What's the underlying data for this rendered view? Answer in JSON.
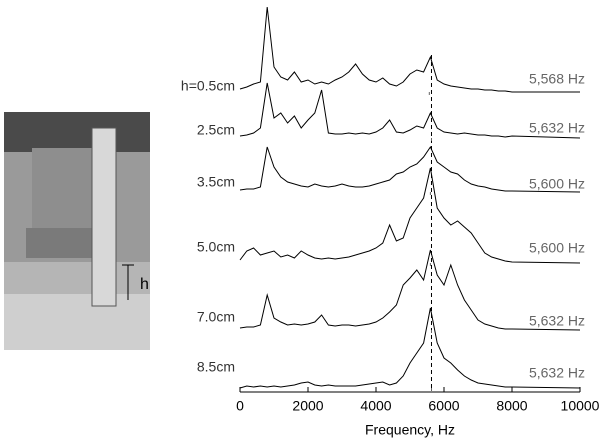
{
  "photo": {
    "label": "h"
  },
  "chart_data": {
    "type": "line",
    "xlabel": "Frequency, Hz",
    "xlim": [
      0,
      10000
    ],
    "xticks": [
      0,
      2000,
      4000,
      6000,
      8000,
      10000
    ],
    "reference_line": 5632,
    "x": [
      0,
      200,
      400,
      600,
      800,
      1000,
      1200,
      1400,
      1600,
      1800,
      2000,
      2200,
      2400,
      2600,
      2800,
      3000,
      3200,
      3400,
      3600,
      3800,
      4000,
      4200,
      4400,
      4600,
      4800,
      5000,
      5200,
      5400,
      5600,
      5800,
      6000,
      6200,
      6400,
      6600,
      6800,
      7000,
      7200,
      7400,
      7600,
      7800,
      8000,
      10000
    ],
    "series": [
      {
        "name": "h=0.5cm",
        "color": "#000000",
        "peak": {
          "value": 5568,
          "label": "5,568 Hz"
        },
        "values": [
          3,
          5,
          8,
          10,
          85,
          25,
          15,
          12,
          20,
          10,
          12,
          8,
          10,
          8,
          12,
          15,
          20,
          28,
          18,
          12,
          10,
          14,
          8,
          6,
          10,
          18,
          22,
          20,
          35,
          12,
          8,
          6,
          5,
          4,
          3,
          3,
          2,
          2,
          1,
          1,
          0,
          0
        ]
      },
      {
        "name": "2.5cm",
        "color": "#000000",
        "peak": {
          "value": 5632,
          "label": "5,632 Hz"
        },
        "values": [
          2,
          3,
          5,
          10,
          55,
          20,
          25,
          15,
          22,
          10,
          18,
          25,
          48,
          5,
          4,
          4,
          5,
          4,
          5,
          4,
          6,
          10,
          18,
          6,
          5,
          8,
          12,
          10,
          25,
          10,
          6,
          5,
          4,
          5,
          4,
          3,
          3,
          2,
          2,
          1,
          2,
          0
        ]
      },
      {
        "name": "3.5cm",
        "color": "#000000",
        "peak": {
          "value": 5600,
          "label": "5,600 Hz"
        },
        "values": [
          2,
          3,
          3,
          5,
          45,
          25,
          15,
          10,
          8,
          6,
          5,
          8,
          6,
          5,
          6,
          8,
          6,
          5,
          5,
          6,
          8,
          10,
          12,
          18,
          20,
          25,
          28,
          35,
          45,
          30,
          25,
          20,
          18,
          12,
          8,
          6,
          5,
          3,
          2,
          1,
          1,
          0
        ]
      },
      {
        "name": "5.0cm",
        "color": "#000000",
        "peak": {
          "value": 5600,
          "label": "5,600 Hz"
        },
        "values": [
          3,
          12,
          15,
          8,
          10,
          12,
          6,
          8,
          5,
          12,
          8,
          5,
          4,
          5,
          4,
          5,
          6,
          8,
          10,
          12,
          15,
          20,
          38,
          22,
          25,
          45,
          55,
          65,
          95,
          55,
          45,
          38,
          42,
          36,
          30,
          20,
          10,
          6,
          4,
          2,
          1,
          0
        ]
      },
      {
        "name": "7.0cm",
        "color": "#000000",
        "peak": {
          "value": 5632,
          "label": "5,632 Hz"
        },
        "values": [
          2,
          3,
          3,
          5,
          35,
          12,
          8,
          5,
          6,
          5,
          6,
          8,
          15,
          5,
          4,
          5,
          5,
          4,
          5,
          6,
          8,
          12,
          18,
          25,
          45,
          52,
          60,
          50,
          80,
          55,
          45,
          65,
          45,
          30,
          20,
          10,
          6,
          4,
          2,
          1,
          1,
          0
        ]
      },
      {
        "name": "8.5cm",
        "color": "#000000",
        "peak": {
          "value": 5632,
          "label": "5,632 Hz"
        },
        "values": [
          0,
          2,
          1,
          2,
          1,
          2,
          1,
          2,
          3,
          5,
          6,
          3,
          2,
          3,
          2,
          2,
          2,
          2,
          3,
          4,
          5,
          6,
          3,
          5,
          12,
          25,
          35,
          45,
          80,
          45,
          30,
          25,
          18,
          12,
          8,
          5,
          4,
          3,
          2,
          1,
          1,
          0
        ]
      }
    ]
  }
}
